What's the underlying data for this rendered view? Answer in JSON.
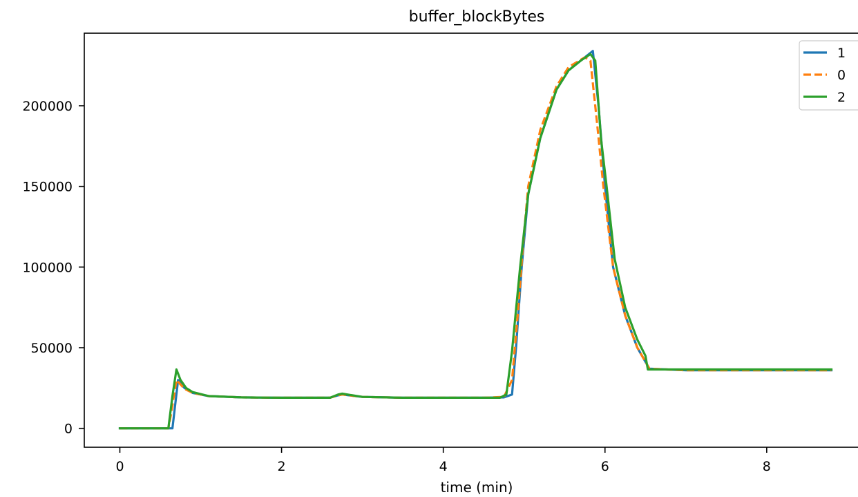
{
  "chart_data": {
    "type": "line",
    "title": "buffer_blockBytes",
    "xlabel": "time (min)",
    "ylabel": "",
    "xlim": [
      -0.44,
      9.3
    ],
    "ylim": [
      -11700,
      245000
    ],
    "x_ticks": [
      0,
      2,
      4,
      6,
      8
    ],
    "y_ticks": [
      0,
      50000,
      100000,
      150000,
      200000
    ],
    "grid": false,
    "legend_position": "top-right",
    "series": [
      {
        "name": "1",
        "color": "#1f77b4",
        "dash": "solid",
        "points": [
          [
            0,
            0
          ],
          [
            0.6,
            0
          ],
          [
            0.65,
            0
          ],
          [
            0.72,
            30000
          ],
          [
            0.8,
            25000
          ],
          [
            0.9,
            22000
          ],
          [
            1.1,
            20000
          ],
          [
            1.5,
            19200
          ],
          [
            2.0,
            19000
          ],
          [
            2.6,
            19000
          ],
          [
            2.7,
            20500
          ],
          [
            2.75,
            21000
          ],
          [
            3.0,
            19500
          ],
          [
            3.5,
            19000
          ],
          [
            4.0,
            19000
          ],
          [
            4.5,
            19000
          ],
          [
            4.75,
            19200
          ],
          [
            4.85,
            21000
          ],
          [
            4.9,
            50000
          ],
          [
            4.97,
            100000
          ],
          [
            5.05,
            145000
          ],
          [
            5.2,
            180000
          ],
          [
            5.4,
            210000
          ],
          [
            5.55,
            222000
          ],
          [
            5.7,
            228000
          ],
          [
            5.85,
            234000
          ],
          [
            5.92,
            200000
          ],
          [
            6.0,
            150000
          ],
          [
            6.1,
            100000
          ],
          [
            6.25,
            70000
          ],
          [
            6.4,
            50000
          ],
          [
            6.55,
            37000
          ],
          [
            7.0,
            36000
          ],
          [
            8.0,
            36000
          ],
          [
            8.8,
            36000
          ]
        ]
      },
      {
        "name": "0",
        "color": "#ff7f0e",
        "dash": "dashed",
        "points": [
          [
            0,
            0
          ],
          [
            0.6,
            0
          ],
          [
            0.63,
            8000
          ],
          [
            0.7,
            30000
          ],
          [
            0.8,
            24500
          ],
          [
            0.9,
            22000
          ],
          [
            1.1,
            20000
          ],
          [
            1.5,
            19200
          ],
          [
            2.0,
            19000
          ],
          [
            2.6,
            19000
          ],
          [
            2.7,
            20500
          ],
          [
            2.75,
            21000
          ],
          [
            3.0,
            19500
          ],
          [
            3.5,
            19000
          ],
          [
            4.0,
            19000
          ],
          [
            4.5,
            19000
          ],
          [
            4.75,
            19500
          ],
          [
            4.85,
            30000
          ],
          [
            4.92,
            70000
          ],
          [
            4.98,
            110000
          ],
          [
            5.05,
            150000
          ],
          [
            5.2,
            185000
          ],
          [
            5.4,
            212000
          ],
          [
            5.55,
            224000
          ],
          [
            5.75,
            230000
          ],
          [
            5.82,
            228000
          ],
          [
            5.9,
            190000
          ],
          [
            5.98,
            150000
          ],
          [
            6.1,
            100000
          ],
          [
            6.25,
            70000
          ],
          [
            6.4,
            50000
          ],
          [
            6.55,
            37000
          ],
          [
            7.0,
            36000
          ],
          [
            8.0,
            36000
          ],
          [
            8.8,
            36000
          ]
        ]
      },
      {
        "name": "2",
        "color": "#2ca02c",
        "dash": "solid",
        "points": [
          [
            0,
            0
          ],
          [
            0.6,
            0
          ],
          [
            0.65,
            20000
          ],
          [
            0.7,
            36500
          ],
          [
            0.75,
            30000
          ],
          [
            0.82,
            25000
          ],
          [
            0.9,
            22500
          ],
          [
            1.1,
            20000
          ],
          [
            1.5,
            19200
          ],
          [
            2.0,
            19000
          ],
          [
            2.6,
            19000
          ],
          [
            2.7,
            21000
          ],
          [
            2.75,
            21500
          ],
          [
            3.0,
            19500
          ],
          [
            3.5,
            19000
          ],
          [
            4.0,
            19000
          ],
          [
            4.5,
            19000
          ],
          [
            4.7,
            19000
          ],
          [
            4.78,
            21000
          ],
          [
            4.85,
            48000
          ],
          [
            4.95,
            100000
          ],
          [
            5.05,
            145000
          ],
          [
            5.2,
            180000
          ],
          [
            5.4,
            210000
          ],
          [
            5.55,
            222000
          ],
          [
            5.7,
            228000
          ],
          [
            5.82,
            232000
          ],
          [
            5.88,
            228000
          ],
          [
            5.95,
            180000
          ],
          [
            6.02,
            150000
          ],
          [
            6.12,
            105000
          ],
          [
            6.25,
            75000
          ],
          [
            6.4,
            55000
          ],
          [
            6.5,
            45000
          ],
          [
            6.53,
            36500
          ],
          [
            7.0,
            36500
          ],
          [
            8.0,
            36500
          ],
          [
            8.8,
            36500
          ]
        ]
      }
    ]
  }
}
